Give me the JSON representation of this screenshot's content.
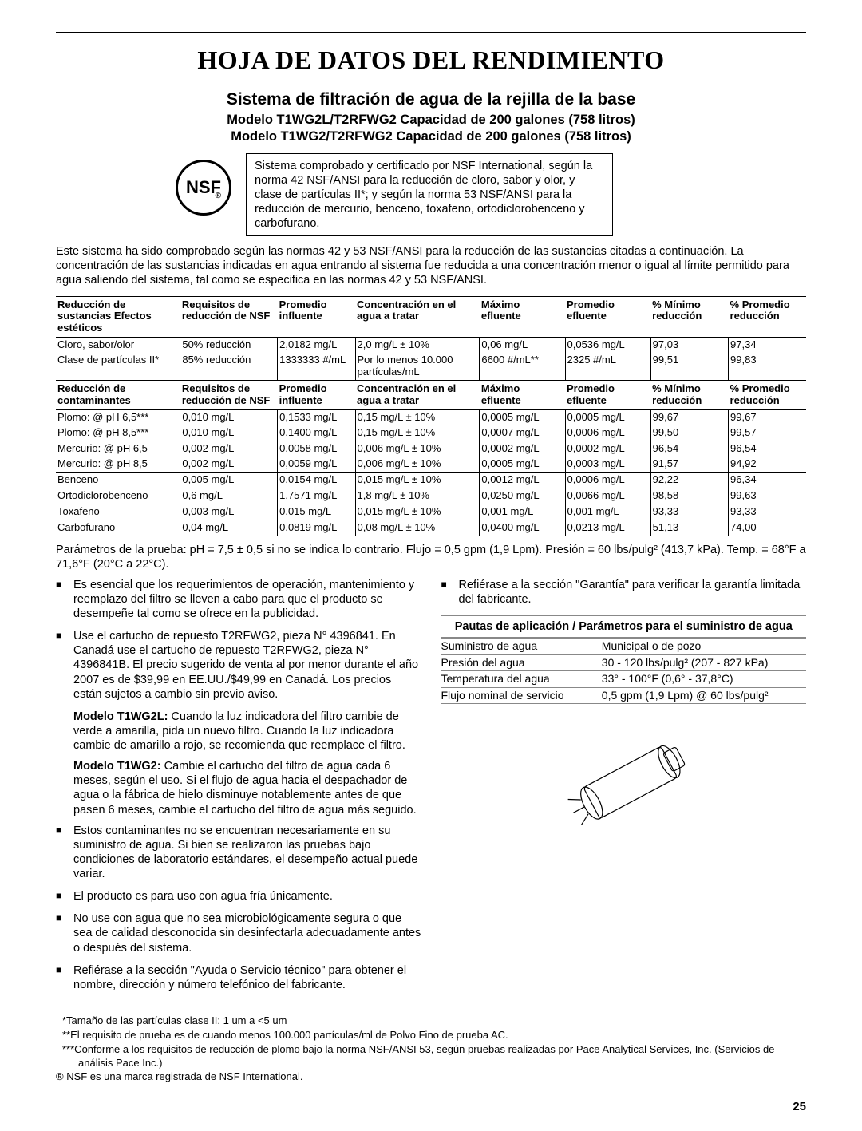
{
  "title": "HOJA DE DATOS DEL RENDIMIENTO",
  "sub": {
    "line1": "Sistema de filtración de agua de la rejilla de la base",
    "line2": "Modelo T1WG2L/T2RFWG2 Capacidad de 200 galones (758 litros)",
    "line3": "Modelo T1WG2/T2RFWG2 Capacidad de 200 galones (758 litros)"
  },
  "nsf_label": "NSF",
  "nsf_box": "Sistema comprobado y certificado por NSF International, según la norma 42 NSF/ANSI para la reducción de cloro, sabor y olor, y clase de partículas II*; y según la norma 53 NSF/ANSI para la reducción de mercurio, benceno, toxafeno, ortodiclorobenceno y carbofurano.",
  "intro": "Este sistema ha sido comprobado según las normas 42 y 53 NSF/ANSI para la reducción de las sustancias citadas a continuación. La concentración de las sustancias indicadas en agua entrando al sistema fue reducida a una concentración menor o igual al límite permitido para agua saliendo del sistema, tal como se especifica en las normas 42 y 53 NSF/ANSI.",
  "table1": {
    "headers": [
      "Reducción de sustancias Efectos estéticos",
      "Requisitos de reducción de NSF",
      "Promedio influente",
      "Concentración en el agua a tratar",
      "Máximo efluente",
      "Promedio efluente",
      "% Mínimo reducción",
      "% Promedio reducción"
    ],
    "rows": [
      [
        "Cloro, sabor/olor",
        "50% reducción",
        "2,0182 mg/L",
        "2,0 mg/L ± 10%",
        "0,06 mg/L",
        "0,0536 mg/L",
        "97,03",
        "97,34"
      ],
      [
        "Clase de partículas II*",
        "85% reducción",
        "1333333 #/mL",
        "Por lo menos 10.000 partículas/mL",
        "6600 #/mL**",
        "2325 #/mL",
        "99,51",
        "99,83"
      ]
    ]
  },
  "table2": {
    "headers": [
      "Reducción de contaminantes",
      "Requisitos de reducción de NSF",
      "Promedio influente",
      "Concentración en el agua a tratar",
      "Máximo efluente",
      "Promedio efluente",
      "% Mínimo reducción",
      "% Promedio reducción"
    ],
    "rows": [
      [
        "Plomo: @ pH 6,5***",
        "0,010 mg/L",
        "0,1533 mg/L",
        "0,15 mg/L ± 10%",
        "0,0005 mg/L",
        "0,0005 mg/L",
        "99,67",
        "99,67"
      ],
      [
        "Plomo: @ pH 8,5***",
        "0,010 mg/L",
        "0,1400 mg/L",
        "0,15 mg/L ± 10%",
        "0,0007 mg/L",
        "0,0006 mg/L",
        "99,50",
        "99,57"
      ],
      [
        "Mercurio: @ pH 6,5",
        "0,002 mg/L",
        "0,0058 mg/L",
        "0,006 mg/L ± 10%",
        "0,0002 mg/L",
        "0,0002 mg/L",
        "96,54",
        "96,54"
      ],
      [
        "Mercurio: @ pH 8,5",
        "0,002 mg/L",
        "0,0059 mg/L",
        "0,006 mg/L ± 10%",
        "0,0005 mg/L",
        "0,0003 mg/L",
        "91,57",
        "94,92"
      ],
      [
        "Benceno",
        "0,005 mg/L",
        "0,0154 mg/L",
        "0,015 mg/L ± 10%",
        "0,0012 mg/L",
        "0,0006 mg/L",
        "92,22",
        "96,34"
      ],
      [
        "Ortodiclorobenceno",
        "0,6 mg/L",
        "1,7571 mg/L",
        "1,8 mg/L ± 10%",
        "0,0250 mg/L",
        "0,0066 mg/L",
        "98,58",
        "99,63"
      ],
      [
        "Toxafeno",
        "0,003 mg/L",
        "0,015 mg/L",
        "0,015 mg/L ± 10%",
        "0,001 mg/L",
        "0,001 mg/L",
        "93,33",
        "93,33"
      ],
      [
        "Carbofurano",
        "0,04 mg/L",
        "0,0819 mg/L",
        "0,08 mg/L ± 10%",
        "0,0400 mg/L",
        "0,0213 mg/L",
        "51,13",
        "74,00"
      ]
    ]
  },
  "params": "Parámetros de la prueba: pH = 7,5 ± 0,5 si no se indica lo contrario. Flujo = 0,5 gpm (1,9 Lpm). Presión = 60 lbs/pulg² (413,7 kPa). Temp. = 68°F a 71,6°F (20°C a 22°C).",
  "left_bullets": [
    "Es esencial que los requerimientos de operación, mantenimiento y reemplazo del filtro se lleven a cabo para que el producto se desempeñe tal como se ofrece en la publicidad.",
    "Use el cartucho de repuesto T2RFWG2, pieza N° 4396841. En Canadá use el cartucho de repuesto T2RFWG2, pieza N° 4396841B. El precio sugerido de venta al por menor durante el año 2007 es de $39,99 en EE.UU./$49,99 en Canadá. Los precios están sujetos a cambio sin previo aviso.",
    "Estos contaminantes no se encuentran necesariamente en su suministro de agua. Si bien se realizaron las pruebas bajo condiciones de laboratorio estándares, el desempeño actual puede variar.",
    "El producto es para uso con agua fría únicamente.",
    "No use con agua que no sea microbiológicamente segura o que sea de calidad desconocida sin desinfectarla adecuadamente antes o después del sistema.",
    "Refiérase a la sección \"Ayuda o Servicio técnico\" para obtener el nombre, dirección y número telefónico del fabricante."
  ],
  "model_notes": [
    {
      "label": "Modelo T1WG2L:",
      "text": " Cuando la luz indicadora del filtro cambie de verde a amarilla, pida un nuevo filtro. Cuando la luz indicadora cambie de amarillo a rojo, se recomienda que reemplace el filtro."
    },
    {
      "label": "Modelo T1WG2:",
      "text": " Cambie el cartucho del filtro de agua cada 6 meses, según el uso. Si el flujo de agua hacia el despachador de agua o la fábrica de hielo disminuye notablemente antes de que pasen 6 meses, cambie el cartucho del filtro de agua más seguido."
    }
  ],
  "right_bullet": "Refiérase a la sección \"Garantía\" para verificar la garantía limitada del fabricante.",
  "pautas_title": "Pautas de aplicación / Parámetros para el suministro de agua",
  "pautas": [
    [
      "Suministro de agua",
      "Municipal o de pozo"
    ],
    [
      "Presión del agua",
      "30 - 120 lbs/pulg² (207 - 827 kPa)"
    ],
    [
      "Temperatura del agua",
      "33° - 100°F (0,6° - 37,8°C)"
    ],
    [
      "Flujo nominal de servicio",
      "0,5 gpm (1,9 Lpm) @ 60 lbs/pulg²"
    ]
  ],
  "footnotes": [
    "*Tamaño de las partículas clase II: 1 um a <5 um",
    "**El requisito de prueba es de cuando menos 100.000 partículas/ml de Polvo Fino de prueba AC.",
    "***Conforme a los requisitos de reducción de plomo bajo la norma NSF/ANSI 53, según pruebas realizadas por Pace Analytical Services, Inc. (Servicios de análisis Pace Inc.)",
    "® NSF es una marca registrada de NSF International."
  ],
  "page_number": "25"
}
